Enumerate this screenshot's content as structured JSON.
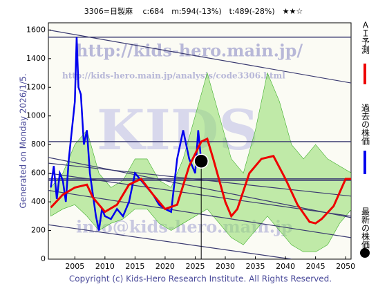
{
  "chart_data": {
    "type": "line",
    "title": "3306=日製麻　 c:684　m:594(-13%)　t:489(-28%)　★★☆",
    "side_note": "Generated on Monday 2026/1/5.",
    "copyright": "Copyright (c) Kids-Hero Research Institute. All Rights Reserved.",
    "watermarks": [
      "http://kids-hero.main.jp/",
      "http://kids-hero.main.jp/analysis/code3306.html",
      "KIDS",
      "info@kids-hero.main.jp"
    ],
    "xlim": [
      2000.6,
      2050.9
    ],
    "ylim": [
      0,
      1650
    ],
    "xticks": [
      2005,
      2010,
      2015,
      2020,
      2025,
      2030,
      2035,
      2040,
      2045,
      2050
    ],
    "yticks": [
      0,
      200,
      400,
      600,
      800,
      1000,
      1200,
      1400,
      1600
    ],
    "band": {
      "color": "#8fdc6a",
      "x": [
        2001,
        2003,
        2005,
        2007,
        2009,
        2011,
        2013,
        2015,
        2017,
        2019,
        2021,
        2023,
        2025,
        2027,
        2029,
        2031,
        2033,
        2035,
        2037,
        2039,
        2041,
        2043,
        2045,
        2047,
        2049,
        2051
      ],
      "lower": [
        300,
        350,
        380,
        300,
        200,
        250,
        280,
        350,
        350,
        250,
        200,
        250,
        300,
        350,
        250,
        150,
        100,
        200,
        300,
        200,
        100,
        50,
        50,
        100,
        250,
        350
      ],
      "upper": [
        500,
        600,
        800,
        900,
        600,
        500,
        550,
        700,
        700,
        550,
        500,
        700,
        1000,
        1300,
        1000,
        700,
        600,
        900,
        1300,
        1100,
        800,
        700,
        800,
        700,
        650,
        600
      ]
    },
    "hlines": [
      1550,
      820,
      560,
      550
    ],
    "trend_lines": [
      [
        2000.6,
        1600,
        2050.9,
        1230
      ],
      [
        2000.6,
        710,
        2050.9,
        290
      ],
      [
        2000.6,
        670,
        2050.9,
        440
      ],
      [
        2000.6,
        600,
        2050.9,
        300
      ],
      [
        2000.6,
        240,
        2041,
        0
      ],
      [
        2000.6,
        480,
        2050.9,
        150
      ]
    ],
    "series": [
      {
        "name": "過去の株価",
        "color": "#0000ee",
        "x": [
          2001,
          2001.5,
          2002,
          2002.5,
          2003,
          2003.5,
          2004,
          2004.5,
          2005,
          2005.3,
          2005.6,
          2006,
          2006.5,
          2007,
          2007.5,
          2008,
          2008.5,
          2009,
          2009.5,
          2010,
          2011,
          2012,
          2013,
          2014,
          2015,
          2016,
          2017,
          2018,
          2019,
          2020,
          2021,
          2022,
          2023,
          2024,
          2025,
          2025.5,
          2026
        ],
        "values": [
          500,
          650,
          420,
          600,
          550,
          400,
          700,
          900,
          1100,
          1550,
          1200,
          1150,
          800,
          900,
          600,
          450,
          300,
          200,
          350,
          300,
          280,
          350,
          300,
          400,
          600,
          550,
          500,
          450,
          380,
          350,
          330,
          700,
          900,
          700,
          600,
          900,
          684
        ]
      },
      {
        "name": "ＡＩ予測",
        "color": "#ee0000",
        "x": [
          2001,
          2003,
          2005,
          2007,
          2008,
          2010,
          2012,
          2014,
          2016,
          2018,
          2020,
          2022,
          2024,
          2026,
          2027,
          2028,
          2030,
          2031,
          2032,
          2034,
          2036,
          2038,
          2040,
          2042,
          2044,
          2045,
          2046,
          2048,
          2050,
          2051
        ],
        "values": [
          360,
          450,
          500,
          520,
          430,
          330,
          380,
          520,
          560,
          450,
          350,
          380,
          650,
          820,
          840,
          700,
          400,
          300,
          350,
          600,
          700,
          720,
          560,
          380,
          260,
          250,
          280,
          370,
          560,
          560
        ]
      },
      {
        "name": "最新の株価",
        "color": "#000000",
        "x": [
          2026
        ],
        "values": [
          684
        ]
      }
    ]
  }
}
